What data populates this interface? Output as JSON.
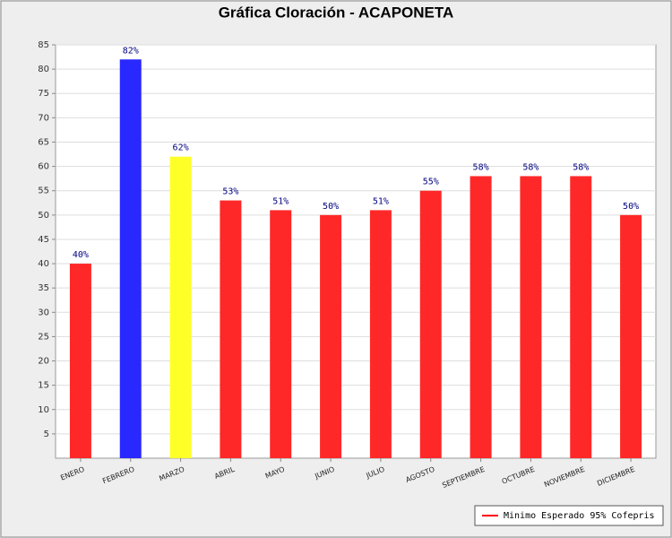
{
  "chart_data": {
    "type": "bar",
    "title": "Gráfica Cloración - ACAPONETA",
    "categories": [
      "ENERO",
      "FEBRERO",
      "MARZO",
      "ABRIL",
      "MAYO",
      "JUNIO",
      "JULIO",
      "AGOSTO",
      "SEPTIEMBRE",
      "OCTUBRE",
      "NOVIEMBRE",
      "DICIEMBRE"
    ],
    "values": [
      40,
      82,
      62,
      53,
      51,
      50,
      51,
      55,
      58,
      58,
      58,
      50
    ],
    "value_labels": [
      "40%",
      "82%",
      "62%",
      "53%",
      "51%",
      "50%",
      "51%",
      "55%",
      "58%",
      "58%",
      "58%",
      "50%"
    ],
    "colors": [
      "#ff2828",
      "#2828ff",
      "#ffff28",
      "#ff2828",
      "#ff2828",
      "#ff2828",
      "#ff2828",
      "#ff2828",
      "#ff2828",
      "#ff2828",
      "#ff2828",
      "#ff2828"
    ],
    "ylim": [
      0,
      85
    ],
    "yticks": [
      5,
      10,
      15,
      20,
      25,
      30,
      35,
      40,
      45,
      50,
      55,
      60,
      65,
      70,
      75,
      80,
      85
    ],
    "grid": true,
    "legend": {
      "name": "Minimo Esperado 95% Cofepris",
      "color": "#ff0000",
      "position": "bottom-right"
    }
  }
}
